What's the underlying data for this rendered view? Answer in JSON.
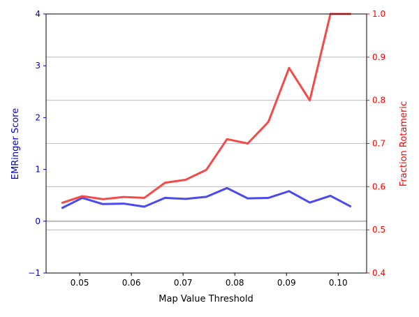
{
  "chart_data": {
    "type": "line",
    "title": "",
    "xlabel": "Map Value Threshold",
    "ylabel_left": "EMRinger Score",
    "ylabel_right": "Fraction Rotameric",
    "xlim": [
      0.0435,
      0.1055
    ],
    "ylim_left": [
      -1,
      4
    ],
    "ylim_right": [
      0.4,
      1.0
    ],
    "x_ticks": [
      0.05,
      0.06,
      0.07,
      0.08,
      0.09,
      0.1
    ],
    "x_tick_labels": [
      "0.05",
      "0.06",
      "0.07",
      "0.08",
      "0.09",
      "0.10"
    ],
    "y_left_ticks": [
      -1,
      0,
      1,
      2,
      3,
      4
    ],
    "y_left_tick_labels": [
      "−1",
      "0",
      "1",
      "2",
      "3",
      "4"
    ],
    "y_right_ticks": [
      0.4,
      0.5,
      0.6,
      0.7,
      0.8,
      0.9,
      1.0
    ],
    "y_right_tick_labels": [
      "0.4",
      "0.5",
      "0.6",
      "0.7",
      "0.8",
      "0.9",
      "1.0"
    ],
    "grid": "horizontal (right axis)",
    "zero_line_left": 0,
    "legend": "none",
    "colors": {
      "left_axis": "#0000cc",
      "right_axis": "#ff0000",
      "series_left": "#4a4aee",
      "series_right": "#f44a4a",
      "grid": "#b0b0b0",
      "zero_line": "#bdbdbd"
    },
    "series": [
      {
        "axis": "left",
        "x": [
          0.0465,
          0.0505,
          0.0545,
          0.0585,
          0.0625,
          0.0665,
          0.0705,
          0.0745,
          0.0785,
          0.0825,
          0.0865,
          0.0905,
          0.0945,
          0.0985,
          0.1025
        ],
        "values": [
          0.25,
          0.45,
          0.33,
          0.34,
          0.28,
          0.45,
          0.43,
          0.47,
          0.64,
          0.44,
          0.45,
          0.58,
          0.36,
          0.49,
          0.28
        ]
      },
      {
        "axis": "right",
        "x": [
          0.0465,
          0.0505,
          0.0545,
          0.0585,
          0.0625,
          0.0665,
          0.0705,
          0.0745,
          0.0785,
          0.0825,
          0.0865,
          0.0905,
          0.0945,
          0.0985,
          0.1025
        ],
        "values": [
          0.562,
          0.578,
          0.571,
          0.576,
          0.574,
          0.609,
          0.616,
          0.639,
          0.71,
          0.7,
          0.75,
          0.875,
          0.8,
          1.0,
          1.0
        ]
      }
    ]
  }
}
